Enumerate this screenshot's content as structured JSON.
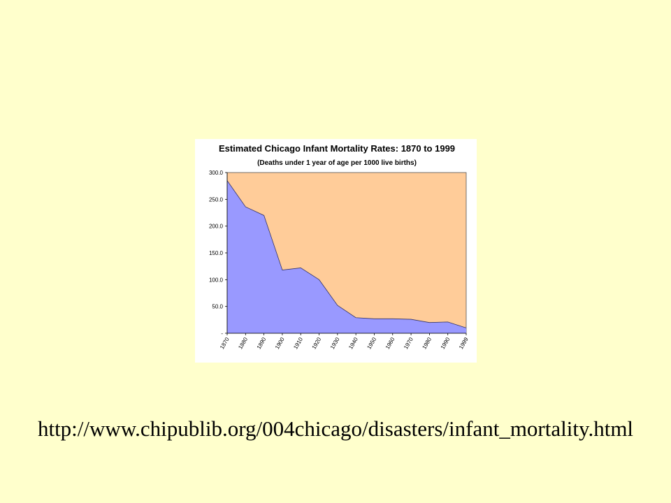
{
  "slide": {
    "background": "#ffffcc",
    "source_url": "http://www.chipublib.org/004chicago/disasters/infant_mortality.html"
  },
  "chart_data": {
    "type": "area",
    "title": "Estimated Chicago Infant Mortality Rates: 1870 to 1999",
    "subtitle": "(Deaths under 1 year of age per 1000 live births)",
    "xlabel": "",
    "ylabel": "",
    "categories": [
      "1870",
      "1880",
      "1890",
      "1900",
      "1910",
      "1920",
      "1930",
      "1940",
      "1950",
      "1960",
      "1970",
      "1980",
      "1990",
      "1999"
    ],
    "series": [
      {
        "values": [
          285,
          236,
          220,
          118,
          122,
          100,
          52,
          29,
          27,
          27,
          26,
          20,
          21,
          10
        ],
        "color": "#9999ff"
      }
    ],
    "ylim": [
      0,
      300
    ],
    "yticks": [
      "-",
      "50.0",
      "100.0",
      "150.0",
      "200.0",
      "250.0",
      "300.0"
    ],
    "plot_background": "#ffcc99",
    "grid": false,
    "legend": "none"
  }
}
